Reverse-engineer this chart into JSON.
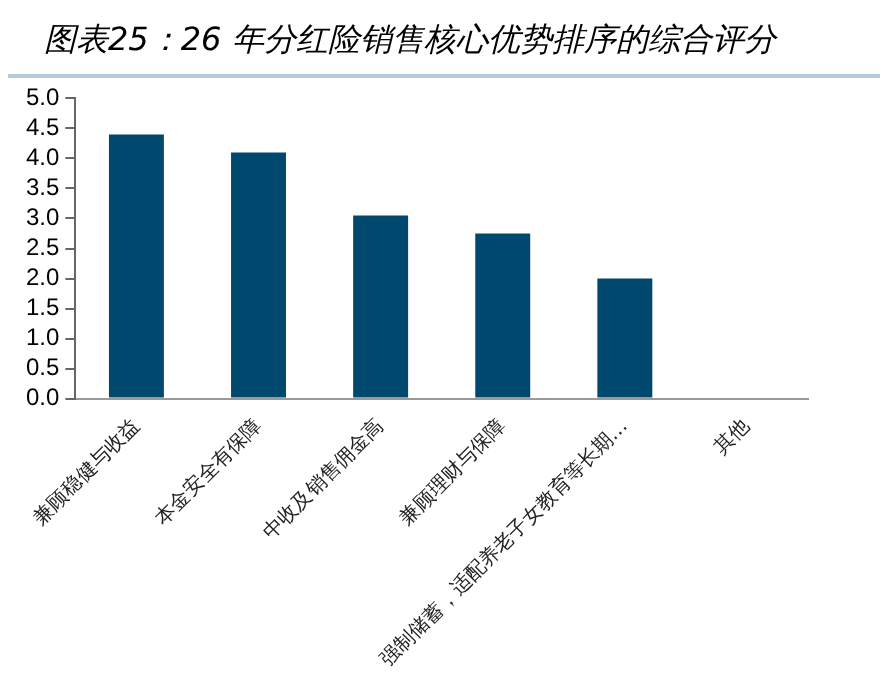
{
  "chart_data": {
    "type": "bar",
    "title": "图表25：26 年分红险销售核心优势排序的综合评分",
    "categories": [
      "兼顾稳健与收益",
      "本金安全有保障",
      "中收及销售佣金高",
      "兼顾理财与保障",
      "强制储蓄，适配养老子女教育等长期…",
      "其他"
    ],
    "values": [
      4.4,
      4.1,
      3.05,
      2.75,
      2.0,
      0
    ],
    "color": "#00486e",
    "ylim": [
      0,
      5
    ],
    "yticks": [
      {
        "value": 0,
        "label": "0.0"
      },
      0.5,
      {
        "value": 1,
        "label": "1.0"
      },
      1.5,
      {
        "value": 2,
        "label": "2.0"
      },
      2.5,
      {
        "value": 3,
        "label": "3.0"
      },
      3.5,
      {
        "value": 4,
        "label": "4.0"
      },
      4.5,
      {
        "value": 5,
        "label": "5.0"
      }
    ],
    "grid": false
  }
}
